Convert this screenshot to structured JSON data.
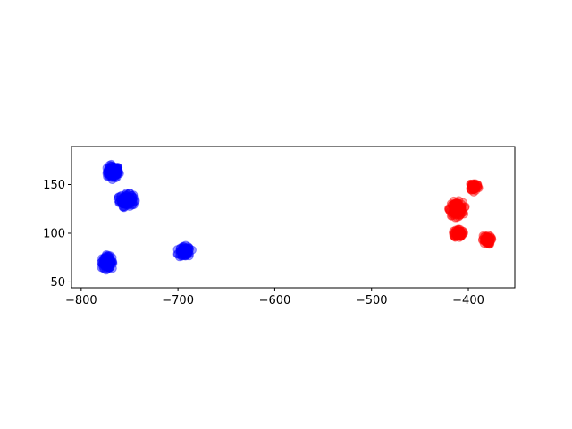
{
  "chart_data": {
    "type": "scatter",
    "title": "",
    "xlabel": "",
    "ylabel": "",
    "xlim": [
      -810,
      -352
    ],
    "ylim": [
      44,
      189
    ],
    "xticks": [
      -800,
      -700,
      -600,
      -500,
      -400
    ],
    "xtick_labels": [
      "−800",
      "−700",
      "−600",
      "−500",
      "−400"
    ],
    "yticks": [
      50,
      100,
      150
    ],
    "ytick_labels": [
      "50",
      "100",
      "150"
    ],
    "grid": false,
    "series": [
      {
        "color": "#0000ff",
        "opacity": 0.4,
        "clusters": [
          {
            "center": [
              -767,
              163
            ],
            "spread": [
              7,
              7
            ],
            "count": 120
          },
          {
            "center": [
              -753,
              134
            ],
            "spread": [
              8,
              7
            ],
            "count": 150
          },
          {
            "center": [
              -773,
              70
            ],
            "spread": [
              7,
              7
            ],
            "count": 120
          },
          {
            "center": [
              -693,
              81
            ],
            "spread": [
              7,
              6
            ],
            "count": 90
          }
        ]
      },
      {
        "color": "#ff0000",
        "opacity": 0.4,
        "clusters": [
          {
            "center": [
              -412,
              125
            ],
            "spread": [
              8,
              8
            ],
            "count": 120
          },
          {
            "center": [
              -394,
              148
            ],
            "spread": [
              5,
              5
            ],
            "count": 70
          },
          {
            "center": [
              -410,
              100
            ],
            "spread": [
              5,
              5
            ],
            "count": 70
          },
          {
            "center": [
              -381,
              93
            ],
            "spread": [
              5,
              5
            ],
            "count": 70
          }
        ]
      }
    ]
  }
}
